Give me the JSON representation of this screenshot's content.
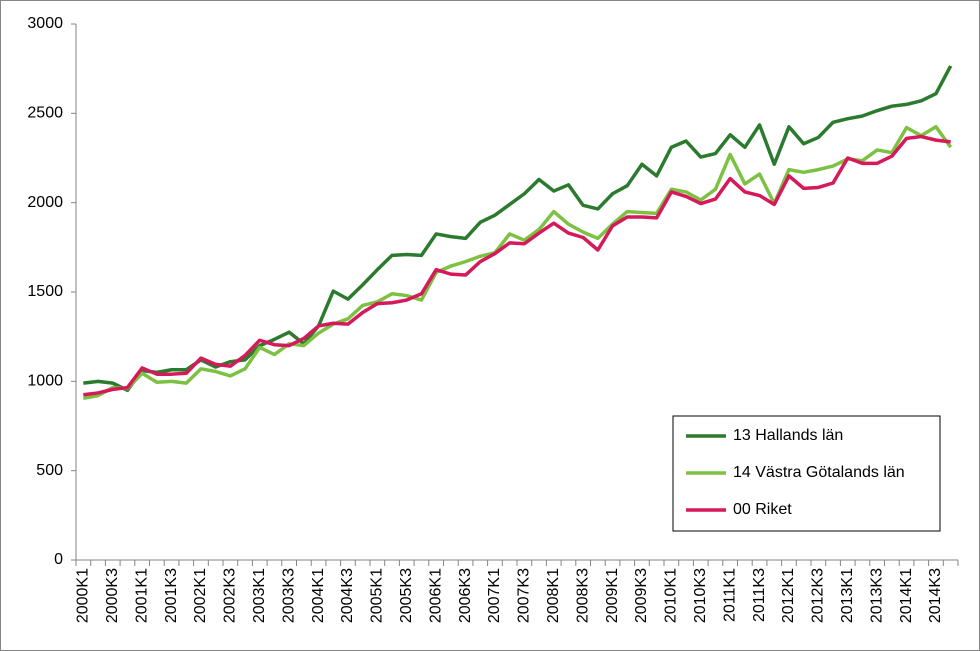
{
  "chart_data": {
    "type": "line",
    "categories": [
      "2000K1",
      null,
      "2000K3",
      null,
      "2001K1",
      null,
      "2001K3",
      null,
      "2002K1",
      null,
      "2002K3",
      null,
      "2003K1",
      null,
      "2003K3",
      null,
      "2004K1",
      null,
      "2004K3",
      null,
      "2005K1",
      null,
      "2005K3",
      null,
      "2006K1",
      null,
      "2006K3",
      null,
      "2007K1",
      null,
      "2007K3",
      null,
      "2008K1",
      null,
      "2008K3",
      null,
      "2009K1",
      null,
      "2009K3",
      null,
      "2010K1",
      null,
      "2010K3",
      null,
      "2011K1",
      null,
      "2011K3",
      null,
      "2012K1",
      null,
      "2012K3",
      null,
      "2013K1",
      null,
      "2013K3",
      null,
      "2014K1",
      null,
      "2014K3",
      null
    ],
    "series": [
      {
        "name": "13 Hallands län",
        "color": "#2b7a2e",
        "values": [
          990,
          1000,
          990,
          950,
          1060,
          1050,
          1065,
          1065,
          1120,
          1080,
          1110,
          1120,
          1200,
          1235,
          1275,
          1210,
          1310,
          1505,
          1460,
          1540,
          1625,
          1705,
          1710,
          1705,
          1825,
          1810,
          1800,
          1890,
          1930,
          1990,
          2050,
          2130,
          2065,
          2100,
          1985,
          1965,
          2050,
          2095,
          2215,
          2150,
          2310,
          2345,
          2255,
          2275,
          2380,
          2310,
          2435,
          2215,
          2425,
          2330,
          2365,
          2450,
          2470,
          2485,
          2515,
          2540,
          2550,
          2570,
          2610,
          2765
        ]
      },
      {
        "name": "14 Västra Götalands län",
        "color": "#7cc142",
        "values": [
          905,
          920,
          965,
          960,
          1045,
          995,
          1000,
          990,
          1070,
          1055,
          1030,
          1070,
          1190,
          1150,
          1210,
          1200,
          1270,
          1320,
          1350,
          1425,
          1445,
          1490,
          1480,
          1455,
          1610,
          1645,
          1670,
          1700,
          1720,
          1825,
          1790,
          1850,
          1950,
          1880,
          1835,
          1800,
          1880,
          1950,
          1945,
          1940,
          2075,
          2060,
          2015,
          2075,
          2270,
          2105,
          2160,
          1995,
          2185,
          2170,
          2185,
          2205,
          2245,
          2235,
          2295,
          2280,
          2420,
          2375,
          2425,
          2310
        ]
      },
      {
        "name": "00 Riket",
        "color": "#d5195a",
        "values": [
          925,
          935,
          955,
          965,
          1075,
          1040,
          1040,
          1045,
          1130,
          1095,
          1085,
          1145,
          1230,
          1205,
          1200,
          1240,
          1310,
          1325,
          1320,
          1385,
          1435,
          1440,
          1455,
          1490,
          1625,
          1600,
          1595,
          1670,
          1715,
          1775,
          1770,
          1830,
          1885,
          1830,
          1805,
          1735,
          1870,
          1920,
          1920,
          1915,
          2060,
          2035,
          1995,
          2020,
          2135,
          2060,
          2040,
          1990,
          2150,
          2080,
          2085,
          2110,
          2250,
          2220,
          2220,
          2260,
          2360,
          2370,
          2350,
          2340
        ]
      }
    ],
    "ylim": [
      0,
      3000
    ],
    "yticks": [
      0,
      500,
      1000,
      1500,
      2000,
      2500,
      3000
    ],
    "grid": false,
    "legend": "lower right"
  }
}
